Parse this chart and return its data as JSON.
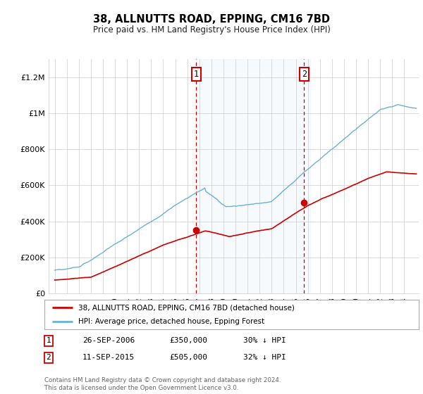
{
  "title": "38, ALLNUTTS ROAD, EPPING, CM16 7BD",
  "subtitle": "Price paid vs. HM Land Registry's House Price Index (HPI)",
  "ylim": [
    0,
    1300000
  ],
  "yticks": [
    0,
    200000,
    400000,
    600000,
    800000,
    1000000,
    1200000
  ],
  "ytick_labels": [
    "£0",
    "£200K",
    "£400K",
    "£600K",
    "£800K",
    "£1M",
    "£1.2M"
  ],
  "hpi_color": "#6ab0d8",
  "price_color": "#cc0000",
  "shade_color": "#d8eaf5",
  "transaction1_date": 2006.73,
  "transaction1_price": 350000,
  "transaction2_date": 2015.69,
  "transaction2_price": 505000,
  "legend_label1": "38, ALLNUTTS ROAD, EPPING, CM16 7BD (detached house)",
  "legend_label2": "HPI: Average price, detached house, Epping Forest",
  "table_row1": [
    "1",
    "26-SEP-2006",
    "£350,000",
    "30% ↓ HPI"
  ],
  "table_row2": [
    "2",
    "11-SEP-2015",
    "£505,000",
    "32% ↓ HPI"
  ],
  "footnote": "Contains HM Land Registry data © Crown copyright and database right 2024.\nThis data is licensed under the Open Government Licence v3.0.",
  "background_color": "#ffffff",
  "plot_bg_color": "#ffffff"
}
